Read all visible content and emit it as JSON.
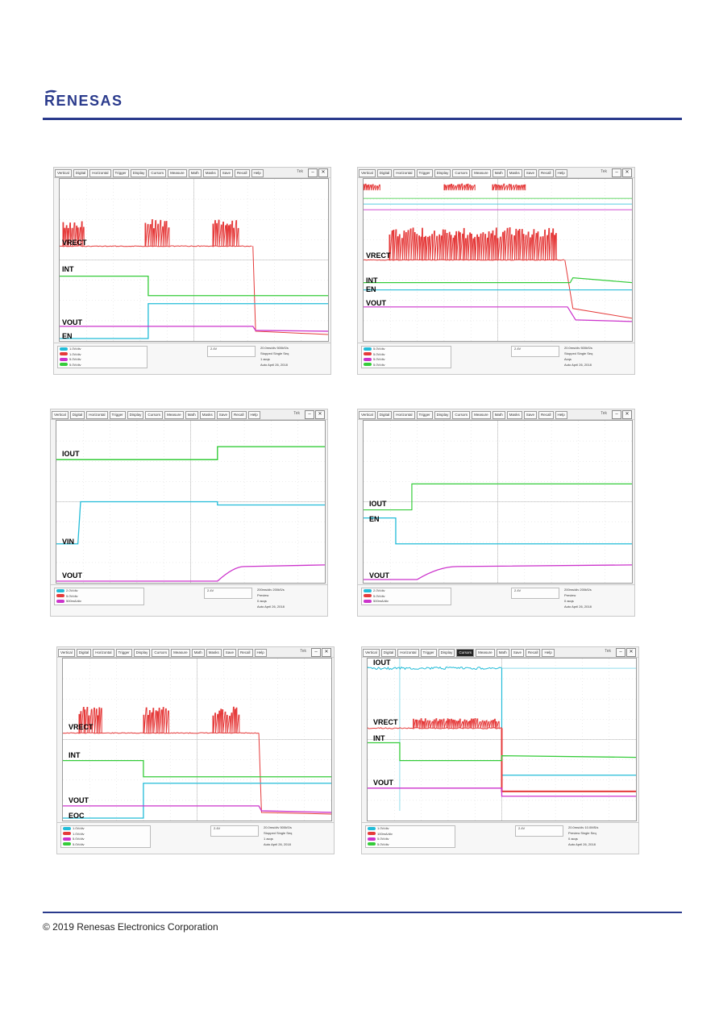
{
  "header": {
    "logo_text": "RENESAS",
    "brand_color": "#2a3a8c"
  },
  "footer": {
    "copyright": "© 2019 Renesas Electronics Corporation"
  },
  "colors": {
    "ch1": "#e53a3a",
    "ch2": "#35cc3a",
    "ch3": "#22bcd8",
    "ch4": "#cc33cc",
    "grid": "#cfcfcf"
  },
  "scopes": [
    {
      "id": "s1",
      "menu": [
        "Vertical",
        "Digital",
        "Horizontal",
        "Trigger",
        "Display",
        "Cursors",
        "Measure",
        "Math",
        "Masks",
        "Save",
        "Recall",
        "Help"
      ],
      "tek_label": "Tek",
      "labels": [
        "VRECT",
        "INT",
        "VOUT",
        "EN"
      ],
      "channels": [
        "1.0V/div",
        "1.0V/div",
        "5.0V/div",
        "5.0V/div"
      ],
      "info": [
        "20.0ms/div 500kS/s",
        "Stopped   Single Seq",
        "1 acqs",
        "Auto   April 26, 2018"
      ],
      "trigger": "2.4V"
    },
    {
      "id": "s2",
      "menu": [
        "Vertical",
        "Digital",
        "Horizontal",
        "Trigger",
        "Display",
        "Cursors",
        "Measure",
        "Math",
        "Masks",
        "Save",
        "Recall",
        "Help"
      ],
      "tek_label": "Tek",
      "labels": [
        "VRECT",
        "INT",
        "EN",
        "VOUT"
      ],
      "channels": [
        "5.0V/div",
        "5.0V/div",
        "5.0V/div",
        "5.0V/div"
      ],
      "info": [
        "20.0ms/div 500kS/s",
        "Stopped   Single Seq",
        "Acqs",
        "Auto   April 26, 2018"
      ],
      "trigger": "2.4V"
    },
    {
      "id": "s3",
      "menu": [
        "Vertical",
        "Digital",
        "Horizontal",
        "Trigger",
        "Display",
        "Cursors",
        "Measure",
        "Math",
        "Masks",
        "Save",
        "Recall",
        "Help"
      ],
      "tek_label": "Tek",
      "labels": [
        "IOUT",
        "VIN",
        "VOUT"
      ],
      "channels": [
        "2.0V/div",
        "5.0V/div",
        "500mA/div"
      ],
      "info": [
        "200ms/div 200kS/s",
        "Preview",
        "0 acqs",
        "Auto   April 26, 2018"
      ],
      "trigger": "2.4V"
    },
    {
      "id": "s4",
      "menu": [
        "Vertical",
        "Digital",
        "Horizontal",
        "Trigger",
        "Display",
        "Cursors",
        "Measure",
        "Math",
        "Masks",
        "Save",
        "Recall",
        "Help"
      ],
      "tek_label": "Tek",
      "labels": [
        "IOUT",
        "EN",
        "VOUT"
      ],
      "channels": [
        "2.0V/div",
        "5.0V/div",
        "500mA/div"
      ],
      "info": [
        "200ms/div 200kS/s",
        "Preview",
        "0 acqs",
        "Auto   April 26, 2018"
      ],
      "trigger": "2.4V"
    },
    {
      "id": "s5",
      "menu": [
        "Vertical",
        "Digital",
        "Horizontal",
        "Trigger",
        "Display",
        "Cursors",
        "Measure",
        "Math",
        "Masks",
        "Save",
        "Recall",
        "Help"
      ],
      "tek_label": "Tek",
      "labels": [
        "VRECT",
        "INT",
        "VOUT",
        "EOC"
      ],
      "channels": [
        "1.0V/div",
        "1.0V/div",
        "5.0V/div",
        "5.0V/div"
      ],
      "info": [
        "20.0ms/div 500kS/s",
        "Stopped   Single Seq",
        "1 acqs",
        "Auto   April 26, 2018"
      ],
      "trigger": "2.4V"
    },
    {
      "id": "s6",
      "menu": [
        "Vertical",
        "Digital",
        "Horizontal",
        "Trigger",
        "Display",
        "Cursors",
        "Measure",
        "Math",
        "Save",
        "Recall",
        "Help"
      ],
      "tek_label": "Tek",
      "labels": [
        "IOUT",
        "VRECT",
        "INT",
        "VOUT"
      ],
      "channels": [
        "1.0V/div",
        "100mA/div",
        "5.0V/div",
        "5.0V/div"
      ],
      "info": [
        "20.0ms/div 10.0MS/s",
        "Preview   Single Seq",
        "0 acqs",
        "Auto   April 26, 2018"
      ],
      "trigger": "2.4V"
    }
  ]
}
